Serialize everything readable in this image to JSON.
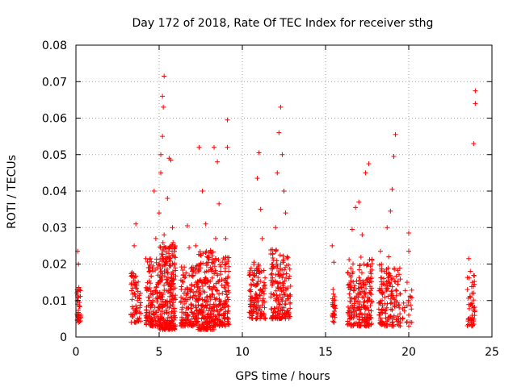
{
  "chart_data": {
    "type": "scatter",
    "title": "Day 172 of 2018, Rate Of TEC Index for receiver sthg",
    "xlabel": "GPS time / hours",
    "ylabel": "ROTI / TECUs",
    "xlim": [
      0,
      25
    ],
    "ylim": [
      0,
      0.08
    ],
    "xticks": [
      "0",
      "5",
      "10",
      "15",
      "20",
      "25"
    ],
    "xtick_values": [
      0,
      5,
      10,
      15,
      20,
      25
    ],
    "yticks": [
      "0",
      "0.01",
      "0.02",
      "0.03",
      "0.04",
      "0.05",
      "0.06",
      "0.07",
      "0.08"
    ],
    "ytick_values": [
      0,
      0.01,
      0.02,
      0.03,
      0.04,
      0.05,
      0.06,
      0.07,
      0.08
    ],
    "grid": true,
    "marker": "+",
    "color": "#ff0000",
    "series": [
      {
        "name": "ROTI",
        "points": [
          [
            0.1,
            0.0235
          ],
          [
            0.15,
            0.02
          ],
          [
            0.2,
            0.013
          ],
          [
            0.1,
            0.009
          ],
          [
            0.2,
            0.006
          ],
          [
            0.15,
            0.004
          ],
          [
            0.1,
            0.011
          ],
          [
            0.2,
            0.0085
          ],
          [
            3.4,
            0.0165
          ],
          [
            3.5,
            0.012
          ],
          [
            3.6,
            0.0085
          ],
          [
            3.4,
            0.006
          ],
          [
            3.7,
            0.005
          ],
          [
            3.5,
            0.025
          ],
          [
            3.6,
            0.031
          ],
          [
            3.8,
            0.0105
          ],
          [
            3.5,
            0.0145
          ],
          [
            4.2,
            0.0215
          ],
          [
            4.4,
            0.018
          ],
          [
            4.6,
            0.012
          ],
          [
            4.7,
            0.04
          ],
          [
            4.8,
            0.027
          ],
          [
            4.5,
            0.008
          ],
          [
            4.9,
            0.0145
          ],
          [
            4.3,
            0.005
          ],
          [
            5.0,
            0.034
          ],
          [
            5.1,
            0.05
          ],
          [
            5.2,
            0.066
          ],
          [
            5.3,
            0.0715
          ],
          [
            5.25,
            0.063
          ],
          [
            5.2,
            0.055
          ],
          [
            5.1,
            0.045
          ],
          [
            5.3,
            0.028
          ],
          [
            5.5,
            0.038
          ],
          [
            5.6,
            0.049
          ],
          [
            5.7,
            0.0485
          ],
          [
            5.8,
            0.03
          ],
          [
            5.4,
            0.02
          ],
          [
            5.5,
            0.015
          ],
          [
            5.6,
            0.008
          ],
          [
            5.2,
            0.005
          ],
          [
            5.7,
            0.012
          ],
          [
            5.9,
            0.022
          ],
          [
            6.3,
            0.0095
          ],
          [
            6.5,
            0.012
          ],
          [
            6.7,
            0.0305
          ],
          [
            6.8,
            0.0245
          ],
          [
            6.9,
            0.013
          ],
          [
            6.6,
            0.006
          ],
          [
            7.0,
            0.018
          ],
          [
            7.2,
            0.025
          ],
          [
            7.4,
            0.052
          ],
          [
            7.6,
            0.04
          ],
          [
            7.8,
            0.031
          ],
          [
            7.5,
            0.02
          ],
          [
            7.3,
            0.01
          ],
          [
            7.9,
            0.015
          ],
          [
            8.0,
            0.023
          ],
          [
            8.3,
            0.052
          ],
          [
            8.5,
            0.048
          ],
          [
            8.6,
            0.0365
          ],
          [
            8.4,
            0.027
          ],
          [
            8.7,
            0.018
          ],
          [
            8.2,
            0.008
          ],
          [
            8.8,
            0.012
          ],
          [
            9.1,
            0.0595
          ],
          [
            9.1,
            0.052
          ],
          [
            9.0,
            0.027
          ],
          [
            9.05,
            0.015
          ],
          [
            9.0,
            0.007
          ],
          [
            10.5,
            0.0125
          ],
          [
            10.7,
            0.0205
          ],
          [
            10.9,
            0.0435
          ],
          [
            11.0,
            0.0505
          ],
          [
            11.1,
            0.035
          ],
          [
            11.2,
            0.027
          ],
          [
            10.8,
            0.008
          ],
          [
            11.3,
            0.014
          ],
          [
            11.8,
            0.024
          ],
          [
            12.0,
            0.03
          ],
          [
            12.1,
            0.045
          ],
          [
            12.2,
            0.056
          ],
          [
            12.3,
            0.063
          ],
          [
            12.4,
            0.05
          ],
          [
            12.5,
            0.04
          ],
          [
            12.6,
            0.034
          ],
          [
            12.3,
            0.02
          ],
          [
            12.7,
            0.022
          ],
          [
            12.8,
            0.016
          ],
          [
            12.5,
            0.008
          ],
          [
            12.0,
            0.01
          ],
          [
            12.6,
            0.0055
          ],
          [
            15.4,
            0.025
          ],
          [
            15.5,
            0.0205
          ],
          [
            15.45,
            0.013
          ],
          [
            15.5,
            0.0085
          ],
          [
            15.4,
            0.006
          ],
          [
            16.4,
            0.0135
          ],
          [
            16.6,
            0.0295
          ],
          [
            16.8,
            0.0355
          ],
          [
            17.0,
            0.037
          ],
          [
            17.2,
            0.028
          ],
          [
            17.4,
            0.045
          ],
          [
            17.6,
            0.0475
          ],
          [
            17.3,
            0.02
          ],
          [
            17.1,
            0.012
          ],
          [
            16.9,
            0.008
          ],
          [
            17.5,
            0.006
          ],
          [
            17.7,
            0.016
          ],
          [
            18.3,
            0.0235
          ],
          [
            18.5,
            0.016
          ],
          [
            18.7,
            0.03
          ],
          [
            18.9,
            0.0345
          ],
          [
            19.0,
            0.0405
          ],
          [
            19.1,
            0.0495
          ],
          [
            19.2,
            0.0555
          ],
          [
            18.8,
            0.022
          ],
          [
            19.0,
            0.012
          ],
          [
            18.6,
            0.0065
          ],
          [
            19.3,
            0.0095
          ],
          [
            19.4,
            0.005
          ],
          [
            18.4,
            0.01
          ],
          [
            20.0,
            0.0285
          ],
          [
            20.0,
            0.0235
          ],
          [
            19.9,
            0.015
          ],
          [
            20.1,
            0.011
          ],
          [
            20.0,
            0.006
          ],
          [
            20.0,
            0.003
          ],
          [
            23.6,
            0.0215
          ],
          [
            23.7,
            0.018
          ],
          [
            23.8,
            0.012
          ],
          [
            23.9,
            0.008
          ],
          [
            23.7,
            0.005
          ],
          [
            23.8,
            0.0045
          ],
          [
            23.9,
            0.053
          ],
          [
            24.0,
            0.064
          ],
          [
            24.0,
            0.0675
          ]
        ]
      }
    ],
    "clusters": [
      {
        "x": [
          0.05,
          0.3
        ],
        "y": [
          0.004,
          0.014
        ],
        "n": 35
      },
      {
        "x": [
          3.3,
          3.9
        ],
        "y": [
          0.004,
          0.018
        ],
        "n": 60
      },
      {
        "x": [
          4.2,
          5.0
        ],
        "y": [
          0.003,
          0.022
        ],
        "n": 120
      },
      {
        "x": [
          5.0,
          6.0
        ],
        "y": [
          0.002,
          0.026
        ],
        "n": 260
      },
      {
        "x": [
          6.3,
          7.3
        ],
        "y": [
          0.003,
          0.02
        ],
        "n": 140
      },
      {
        "x": [
          7.3,
          8.3
        ],
        "y": [
          0.002,
          0.024
        ],
        "n": 200
      },
      {
        "x": [
          8.3,
          9.2
        ],
        "y": [
          0.003,
          0.022
        ],
        "n": 140
      },
      {
        "x": [
          10.4,
          11.4
        ],
        "y": [
          0.005,
          0.02
        ],
        "n": 130
      },
      {
        "x": [
          11.7,
          12.9
        ],
        "y": [
          0.005,
          0.024
        ],
        "n": 170
      },
      {
        "x": [
          15.4,
          15.6
        ],
        "y": [
          0.004,
          0.013
        ],
        "n": 25
      },
      {
        "x": [
          16.3,
          17.8
        ],
        "y": [
          0.003,
          0.022
        ],
        "n": 210
      },
      {
        "x": [
          18.2,
          19.5
        ],
        "y": [
          0.003,
          0.02
        ],
        "n": 150
      },
      {
        "x": [
          19.6,
          20.2
        ],
        "y": [
          0.004,
          0.013
        ],
        "n": 20
      },
      {
        "x": [
          23.5,
          24.0
        ],
        "y": [
          0.003,
          0.017
        ],
        "n": 45
      }
    ]
  }
}
